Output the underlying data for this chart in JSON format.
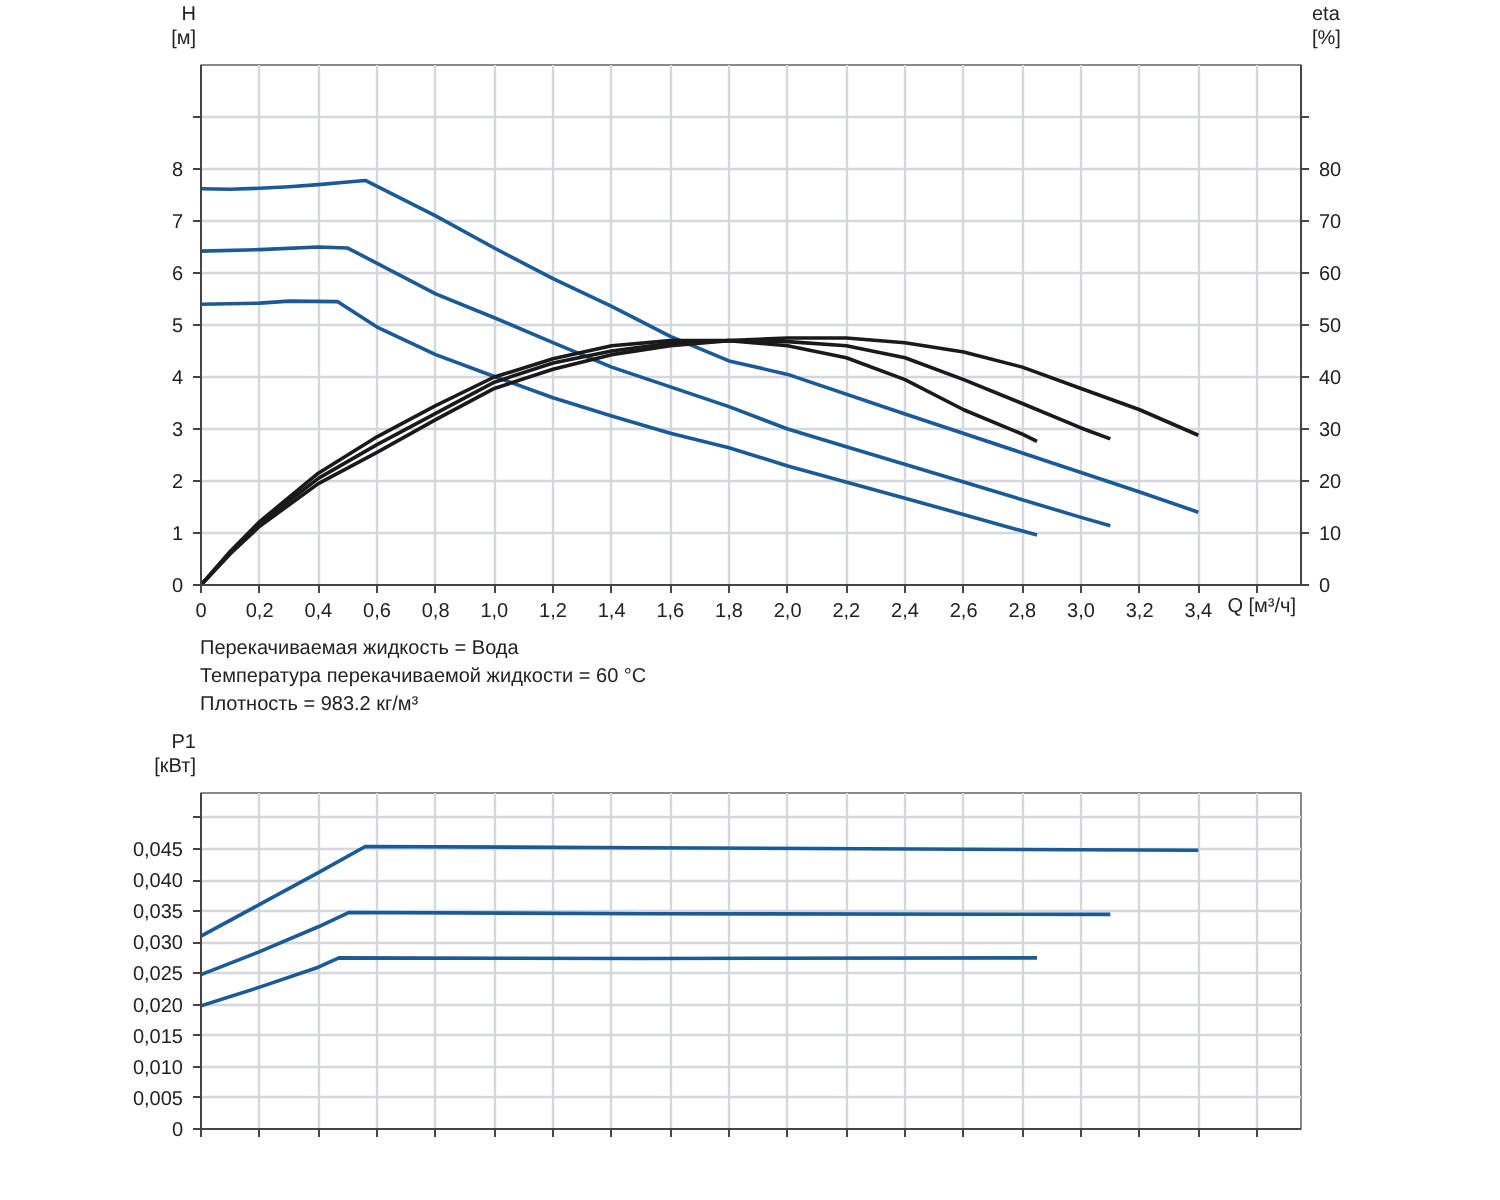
{
  "chart_data": [
    {
      "type": "line",
      "xlabel": "Q [м³/ч]",
      "ylabel": "H [м]",
      "y2label": "eta [%]",
      "xlim": [
        0,
        3.75
      ],
      "ylim": [
        0,
        10
      ],
      "y2lim": [
        0,
        100
      ],
      "grid": true,
      "xticks": [
        0,
        {
          "value": 0.2,
          "label": "0,2"
        },
        {
          "value": 0.4,
          "label": "0,4"
        },
        {
          "value": 0.6,
          "label": "0,6"
        },
        {
          "value": 0.8,
          "label": "0,8"
        },
        {
          "value": 1.0,
          "label": "1,0"
        },
        {
          "value": 1.2,
          "label": "1,2"
        },
        {
          "value": 1.4,
          "label": "1,4"
        },
        {
          "value": 1.6,
          "label": "1,6"
        },
        {
          "value": 1.8,
          "label": "1,8"
        },
        {
          "value": 2.0,
          "label": "2,0"
        },
        {
          "value": 2.2,
          "label": "2,2"
        },
        {
          "value": 2.4,
          "label": "2,4"
        },
        {
          "value": 2.6,
          "label": "2,6"
        },
        {
          "value": 2.8,
          "label": "2,8"
        },
        {
          "value": 3.0,
          "label": "3,0"
        },
        {
          "value": 3.2,
          "label": "3,2"
        },
        {
          "value": 3.4,
          "label": "3,4"
        },
        {
          "value": 3.6,
          "label": null
        }
      ],
      "yticks": [
        0,
        1,
        2,
        3,
        4,
        5,
        6,
        7,
        8,
        {
          "value": 9,
          "label": null
        }
      ],
      "y2ticks": [
        0,
        10,
        20,
        30,
        40,
        50,
        60,
        70,
        80,
        {
          "value": 90,
          "label": null
        }
      ],
      "annotations": [
        "Перекачиваемая жидкость = Вода",
        "Температура перекачиваемой жидкости = 60 °C",
        "Плотность = 983.2 кг/м³"
      ],
      "series": [
        {
          "color": "#1a5a96",
          "x": [
            0,
            0.1,
            0.2,
            0.3,
            0.4,
            0.5,
            0.56,
            0.8,
            1.0,
            1.2,
            1.4,
            1.6,
            1.8,
            2.0,
            2.4,
            2.8,
            3.2,
            3.4
          ],
          "values": [
            7.62,
            7.61,
            7.63,
            7.66,
            7.7,
            7.75,
            7.78,
            7.1,
            6.48,
            5.89,
            5.36,
            4.78,
            4.31,
            4.05,
            3.29,
            2.54,
            1.79,
            1.4
          ]
        },
        {
          "color": "#1a5a96",
          "x": [
            0,
            0.2,
            0.4,
            0.5,
            0.8,
            1.0,
            1.2,
            1.4,
            1.6,
            1.8,
            2.0,
            2.2,
            2.6,
            3.0,
            3.1
          ],
          "values": [
            6.42,
            6.45,
            6.5,
            6.48,
            5.6,
            5.14,
            4.66,
            4.19,
            3.81,
            3.43,
            3.0,
            2.66,
            1.98,
            1.3,
            1.14
          ]
        },
        {
          "color": "#1a5a96",
          "x": [
            0,
            0.2,
            0.3,
            0.465,
            0.6,
            0.8,
            1.0,
            1.2,
            1.4,
            1.6,
            1.8,
            2.0,
            2.4,
            2.85
          ],
          "values": [
            5.4,
            5.42,
            5.46,
            5.45,
            4.96,
            4.43,
            4.01,
            3.6,
            3.25,
            2.92,
            2.64,
            2.29,
            1.67,
            0.96
          ]
        },
        {
          "color": "#1a1a1a",
          "axis": "y2",
          "x": [
            0,
            0.1,
            0.2,
            0.4,
            0.6,
            0.8,
            1.0,
            1.2,
            1.4,
            1.6,
            1.8,
            2.0,
            2.2,
            2.4,
            2.6,
            2.8,
            2.85
          ],
          "values": [
            0,
            6.5,
            12.2,
            21.5,
            28.5,
            34.5,
            40,
            43.5,
            46,
            47,
            47,
            46,
            43.7,
            39.5,
            33.7,
            29,
            27.6
          ]
        },
        {
          "color": "#1a1a1a",
          "axis": "y2",
          "x": [
            0,
            0.1,
            0.2,
            0.4,
            0.6,
            0.8,
            1.0,
            1.2,
            1.4,
            1.6,
            1.8,
            2.0,
            2.2,
            2.4,
            2.6,
            2.8,
            3.0,
            3.1
          ],
          "values": [
            0,
            6.2,
            11.8,
            20.5,
            27,
            33,
            39,
            42.7,
            45,
            46.5,
            47,
            46.8,
            46,
            43.7,
            39.5,
            34.9,
            30.2,
            28.1
          ]
        },
        {
          "color": "#1a1a1a",
          "axis": "y2",
          "x": [
            0,
            0.1,
            0.2,
            0.4,
            0.6,
            0.8,
            1.0,
            1.2,
            1.4,
            1.6,
            1.8,
            2.0,
            2.2,
            2.4,
            2.6,
            2.8,
            3.0,
            3.2,
            3.4
          ],
          "values": [
            0,
            6,
            11.3,
            19.5,
            25.5,
            31.8,
            37.8,
            41.5,
            44.3,
            46,
            47,
            47.5,
            47.5,
            46.6,
            44.8,
            41.9,
            37.8,
            33.7,
            28.8
          ]
        }
      ]
    },
    {
      "type": "line",
      "ylabel": "P1 [кВт]",
      "tick_labels": "y",
      "xlim": [
        0,
        3.75
      ],
      "ylim": [
        0,
        0.054
      ],
      "grid": true,
      "xticks": [
        0,
        0.2,
        0.4,
        0.6,
        0.8,
        1.0,
        1.2,
        1.4,
        1.6,
        1.8,
        2.0,
        2.2,
        2.4,
        2.6,
        2.8,
        3.0,
        3.2,
        3.4,
        3.6
      ],
      "yticks": [
        0,
        {
          "value": 0.005,
          "label": "0,005"
        },
        {
          "value": 0.01,
          "label": "0,010"
        },
        {
          "value": 0.015,
          "label": "0,015"
        },
        {
          "value": 0.02,
          "label": "0,020"
        },
        {
          "value": 0.025,
          "label": "0,025"
        },
        {
          "value": 0.03,
          "label": "0,030"
        },
        {
          "value": 0.035,
          "label": "0,035"
        },
        {
          "value": 0.04,
          "label": "0,040"
        },
        {
          "value": 0.045,
          "label": "0,045"
        },
        {
          "value": 0.05,
          "label": null
        }
      ],
      "series": [
        {
          "color": "#1a5a96",
          "x": [
            0,
            0.2,
            0.4,
            0.56,
            1.5,
            3.4
          ],
          "values": [
            0.031,
            0.0361,
            0.0412,
            0.0454,
            0.0452,
            0.0448
          ]
        },
        {
          "color": "#1a5a96",
          "x": [
            0,
            0.2,
            0.4,
            0.505,
            1.5,
            3.1
          ],
          "values": [
            0.0248,
            0.0285,
            0.0325,
            0.0348,
            0.0346,
            0.0345
          ]
        },
        {
          "color": "#1a5a96",
          "x": [
            0,
            0.2,
            0.4,
            0.47,
            1.5,
            2.85
          ],
          "values": [
            0.0198,
            0.0228,
            0.026,
            0.0275,
            0.0274,
            0.0275
          ]
        }
      ]
    }
  ]
}
